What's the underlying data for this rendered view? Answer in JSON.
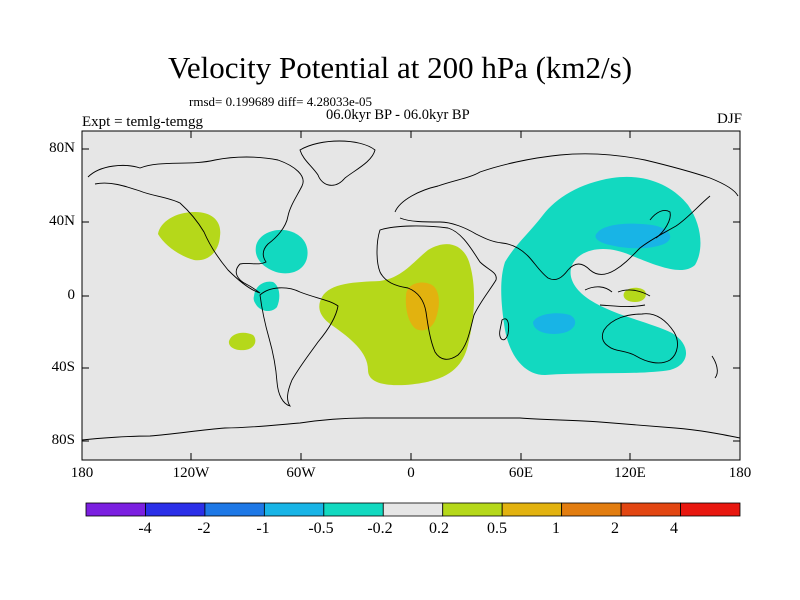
{
  "title": "Velocity Potential at 200 hPa (km2/s)",
  "stats": "rmsd= 0.199689 diff= 4.28033e-05",
  "period": "06.0kyr BP - 06.0kyr BP",
  "expt": "Expt = temlg-temgg",
  "season": "DJF",
  "y_axis_labels": [
    "80N",
    "40N",
    "0",
    "40S",
    "80S"
  ],
  "x_axis_labels": [
    "180",
    "120W",
    "60W",
    "0",
    "60E",
    "120E",
    "180"
  ],
  "colorbar": {
    "labels": [
      "-4",
      "-2",
      "-1",
      "-0.5",
      "-0.2",
      "0.2",
      "0.5",
      "1",
      "2",
      "4"
    ],
    "colors": [
      "#7b1fe0",
      "#2b2fe8",
      "#1e78e6",
      "#18b4e6",
      "#12d9c0",
      "#e6e6e6",
      "#b5d81a",
      "#e2b20f",
      "#e27d10",
      "#e24612",
      "#e8170f"
    ]
  },
  "chart_data": {
    "type": "map",
    "projection": "cylindrical-equidistant",
    "lon_range": [
      -180,
      180
    ],
    "lat_range": [
      -90,
      90
    ],
    "background_color": "#e6e6e6",
    "regions": [
      {
        "name": "n-pacific-positive",
        "level": "0.2 to 0.5",
        "color": "#b5d81a",
        "center": [
          -117,
          37
        ],
        "extent": [
          22,
          9
        ]
      },
      {
        "name": "gulf-of-mexico-negative",
        "level": "-0.5 to -0.2",
        "color": "#12d9c0",
        "center": [
          -75,
          26
        ],
        "extent": [
          13,
          11
        ]
      },
      {
        "name": "central-america-negative",
        "level": "-0.5 to -0.2",
        "color": "#12d9c0",
        "center": [
          -81,
          2
        ],
        "extent": [
          5,
          8
        ]
      },
      {
        "name": "se-pacific-positive",
        "level": "0.2 to 0.5",
        "color": "#b5d81a",
        "center": [
          -93,
          -24
        ],
        "extent": [
          8,
          4
        ]
      },
      {
        "name": "atlantic-africa-positive",
        "level": "0.2 to 0.5",
        "color": "#b5d81a",
        "center": [
          -2,
          -8
        ],
        "extent": [
          46,
          36
        ]
      },
      {
        "name": "tropical-atlantic-core",
        "level": "0.5 to 1",
        "color": "#e2b20f",
        "center": [
          11,
          -7
        ],
        "extent": [
          9,
          14
        ]
      },
      {
        "name": "indian-ocean-asia-negative",
        "level": "-0.5 to -0.2",
        "color": "#12d9c0",
        "center": [
          70,
          10
        ],
        "extent": [
          60,
          55
        ]
      },
      {
        "name": "east-asia-core",
        "level": "-1 to -0.5",
        "color": "#18b4e6",
        "center": [
          124,
          34
        ],
        "extent": [
          20,
          7
        ]
      },
      {
        "name": "southern-indian-core",
        "level": "-1 to -0.5",
        "color": "#18b4e6",
        "center": [
          78,
          -15
        ],
        "extent": [
          8,
          5
        ]
      },
      {
        "name": "maritime-continent-positive",
        "level": "0.2 to 0.5",
        "color": "#b5d81a",
        "center": [
          122,
          0
        ],
        "extent": [
          5,
          4
        ]
      }
    ]
  }
}
